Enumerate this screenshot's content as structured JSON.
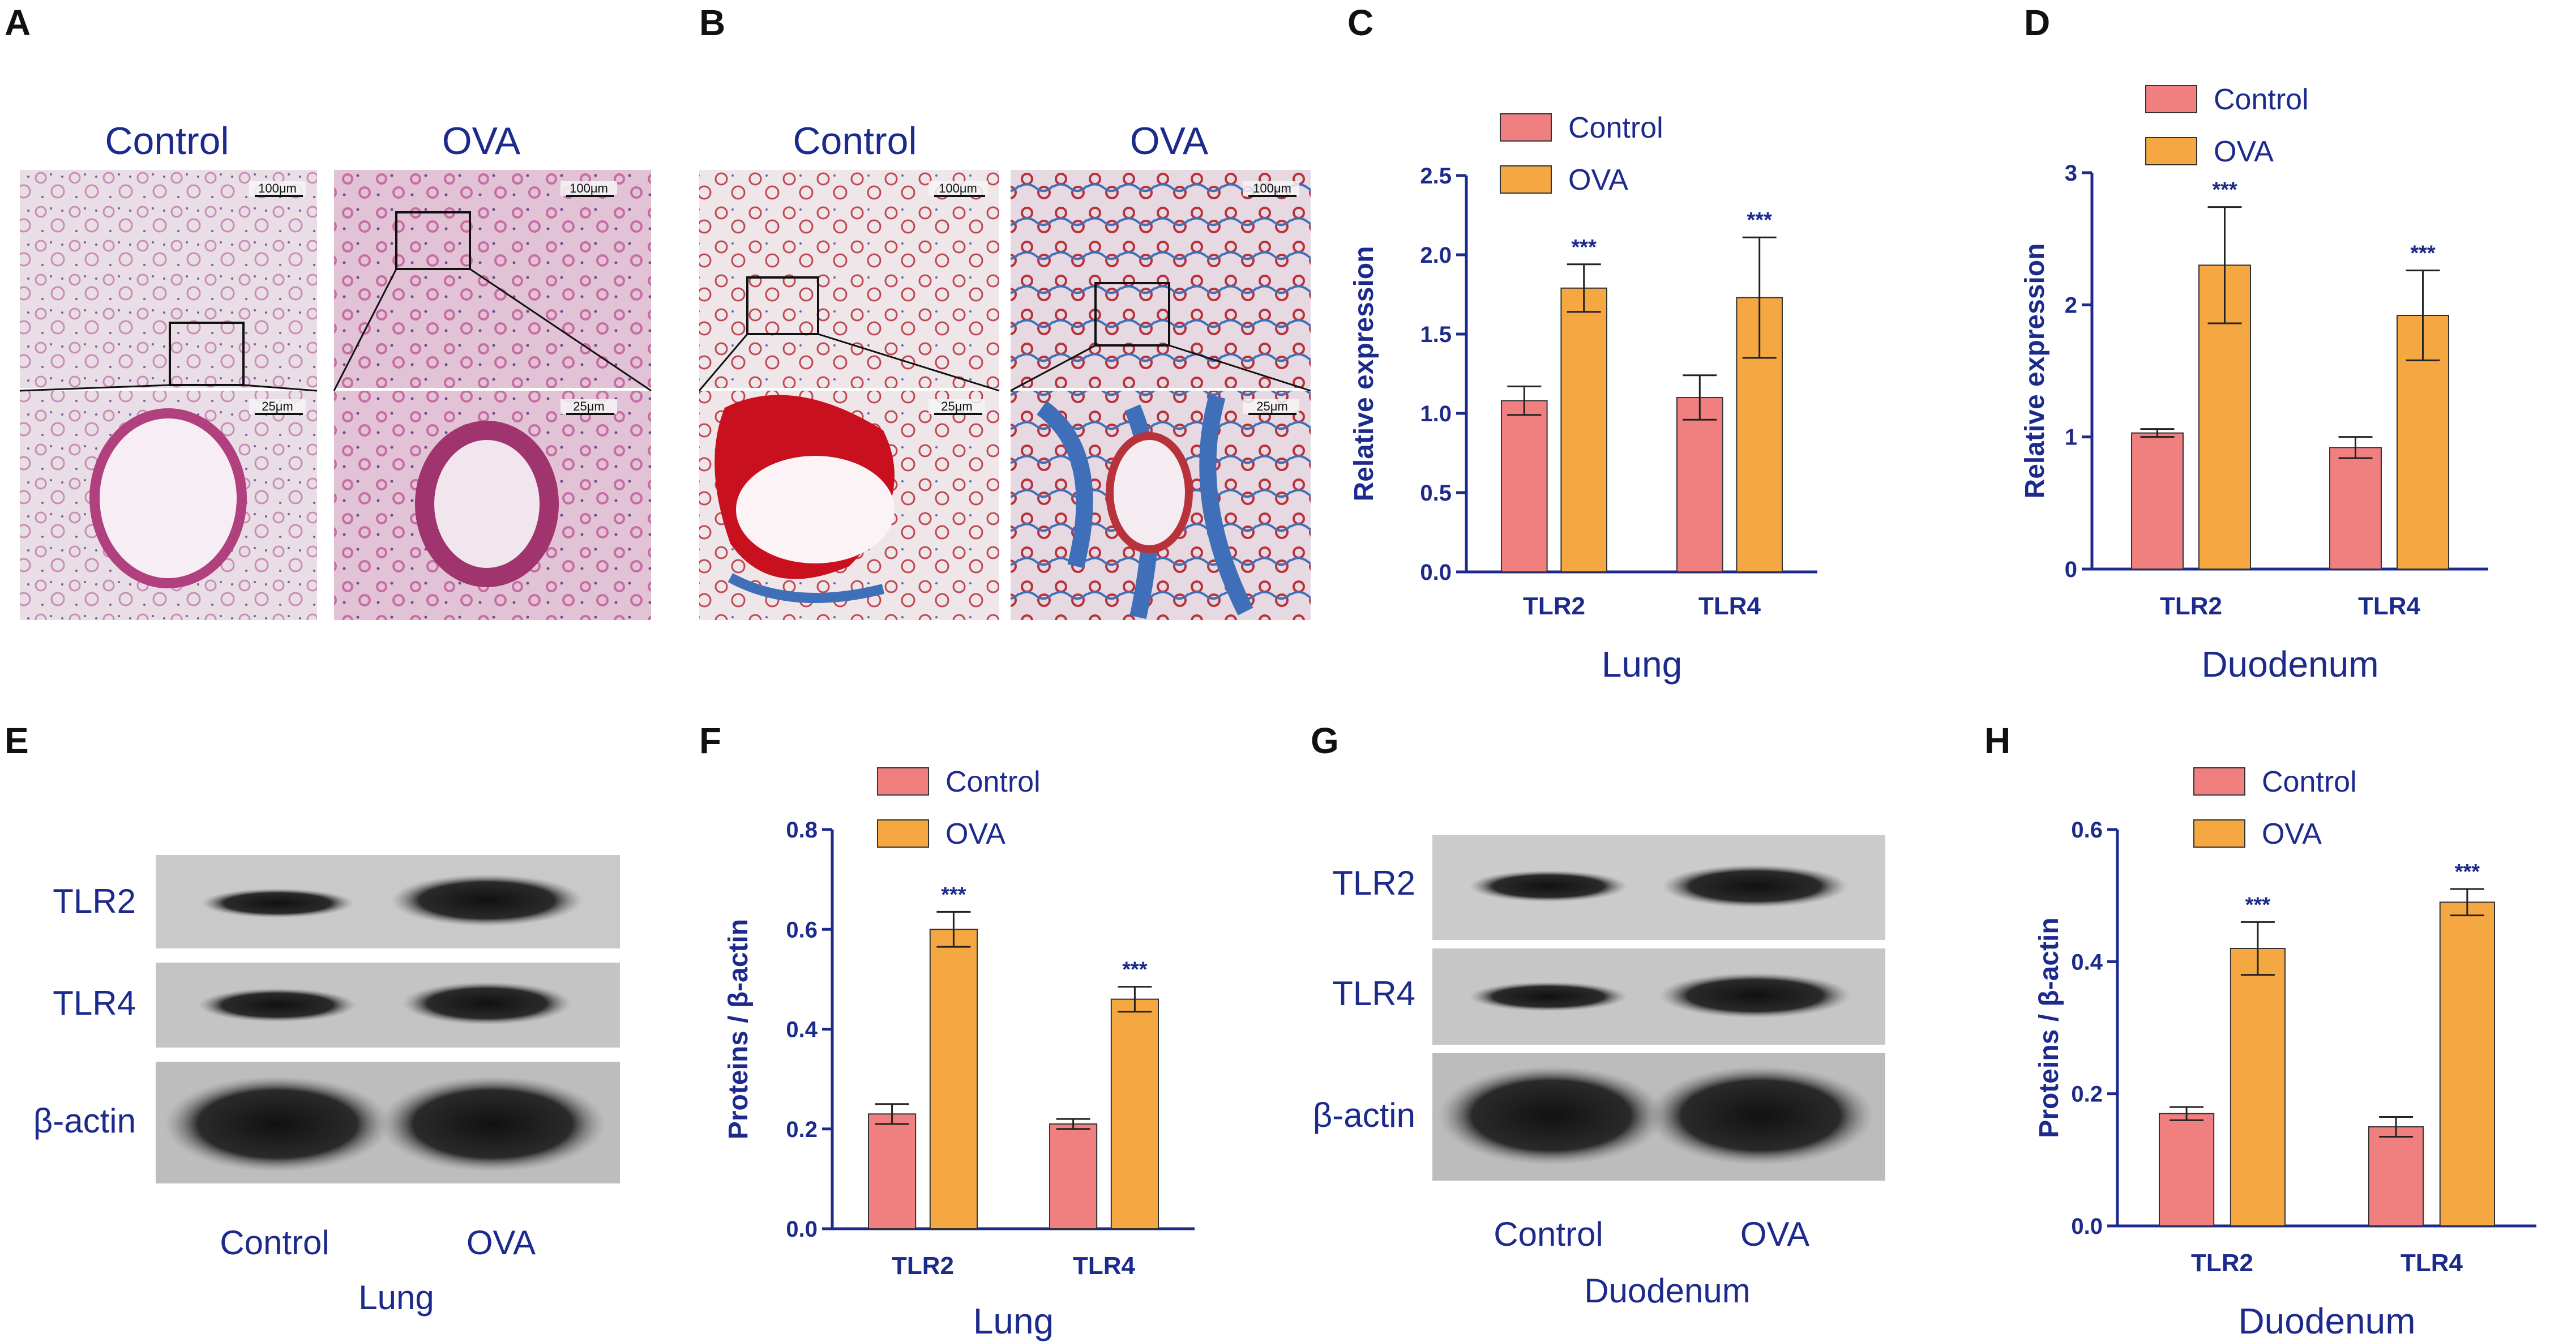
{
  "colors": {
    "control": "#f08080",
    "ova": "#f5a742",
    "text": "#1c2a8c",
    "bar_edge": "#333333"
  },
  "panels": {
    "A": {
      "letter": "A",
      "titles": [
        "Control",
        "OVA"
      ],
      "scale_top": [
        "100μm",
        "100μm"
      ],
      "scale_bottom": [
        "25μm",
        "25μm"
      ]
    },
    "B": {
      "letter": "B",
      "titles": [
        "Control",
        "OVA"
      ],
      "scale_top": [
        "100μm",
        "100μm"
      ],
      "scale_bottom": [
        "25μm",
        "25μm"
      ]
    },
    "E": {
      "letter": "E",
      "rows": [
        "TLR2",
        "TLR4",
        "β-actin"
      ],
      "cols": [
        "Control",
        "OVA"
      ],
      "tissue": "Lung"
    },
    "G": {
      "letter": "G",
      "rows": [
        "TLR2",
        "TLR4",
        "β-actin"
      ],
      "cols": [
        "Control",
        "OVA"
      ],
      "tissue": "Duodenum"
    }
  },
  "chart_data": [
    {
      "panel": "C",
      "type": "bar",
      "categories": [
        "TLR2",
        "TLR4"
      ],
      "series": [
        {
          "name": "Control",
          "values": [
            1.08,
            1.1
          ],
          "errors": [
            0.09,
            0.14
          ]
        },
        {
          "name": "OVA",
          "values": [
            1.79,
            1.73
          ],
          "errors": [
            0.15,
            0.38
          ]
        }
      ],
      "significance": [
        "***",
        "***"
      ],
      "xlabel": "Lung",
      "ylabel": "Relative expression",
      "ylim": [
        0,
        2.5
      ],
      "yticks": [
        "0.0",
        "0.5",
        "1.0",
        "1.5",
        "2.0",
        "2.5"
      ],
      "legend_position": "top-left"
    },
    {
      "panel": "D",
      "type": "bar",
      "categories": [
        "TLR2",
        "TLR4"
      ],
      "series": [
        {
          "name": "Control",
          "values": [
            1.03,
            0.92
          ],
          "errors": [
            0.03,
            0.08
          ]
        },
        {
          "name": "OVA",
          "values": [
            2.3,
            1.92
          ],
          "errors": [
            0.44,
            0.34
          ]
        }
      ],
      "significance": [
        "***",
        "***"
      ],
      "xlabel": "Duodenum",
      "ylabel": "Relative expression",
      "ylim": [
        0,
        3
      ],
      "yticks": [
        "0",
        "1",
        "2",
        "3"
      ],
      "legend_position": "top-left"
    },
    {
      "panel": "F",
      "type": "bar",
      "categories": [
        "TLR2",
        "TLR4"
      ],
      "series": [
        {
          "name": "Control",
          "values": [
            0.23,
            0.21
          ],
          "errors": [
            0.02,
            0.01
          ]
        },
        {
          "name": "OVA",
          "values": [
            0.6,
            0.46
          ],
          "errors": [
            0.035,
            0.025
          ]
        }
      ],
      "significance": [
        "***",
        "***"
      ],
      "xlabel": "Lung",
      "ylabel": "Proteins / β-actin",
      "ylim": [
        0,
        0.8
      ],
      "yticks": [
        "0.0",
        "0.2",
        "0.4",
        "0.6",
        "0.8"
      ],
      "legend_position": "top-left"
    },
    {
      "panel": "H",
      "type": "bar",
      "categories": [
        "TLR2",
        "TLR4"
      ],
      "series": [
        {
          "name": "Control",
          "values": [
            0.17,
            0.15
          ],
          "errors": [
            0.01,
            0.015
          ]
        },
        {
          "name": "OVA",
          "values": [
            0.42,
            0.49
          ],
          "errors": [
            0.04,
            0.02
          ]
        }
      ],
      "significance": [
        "***",
        "***"
      ],
      "xlabel": "Duodenum",
      "ylabel": "Proteins / β-actin",
      "ylim": [
        0,
        0.6
      ],
      "yticks": [
        "0.0",
        "0.2",
        "0.4",
        "0.6"
      ],
      "legend_position": "top-left"
    }
  ]
}
